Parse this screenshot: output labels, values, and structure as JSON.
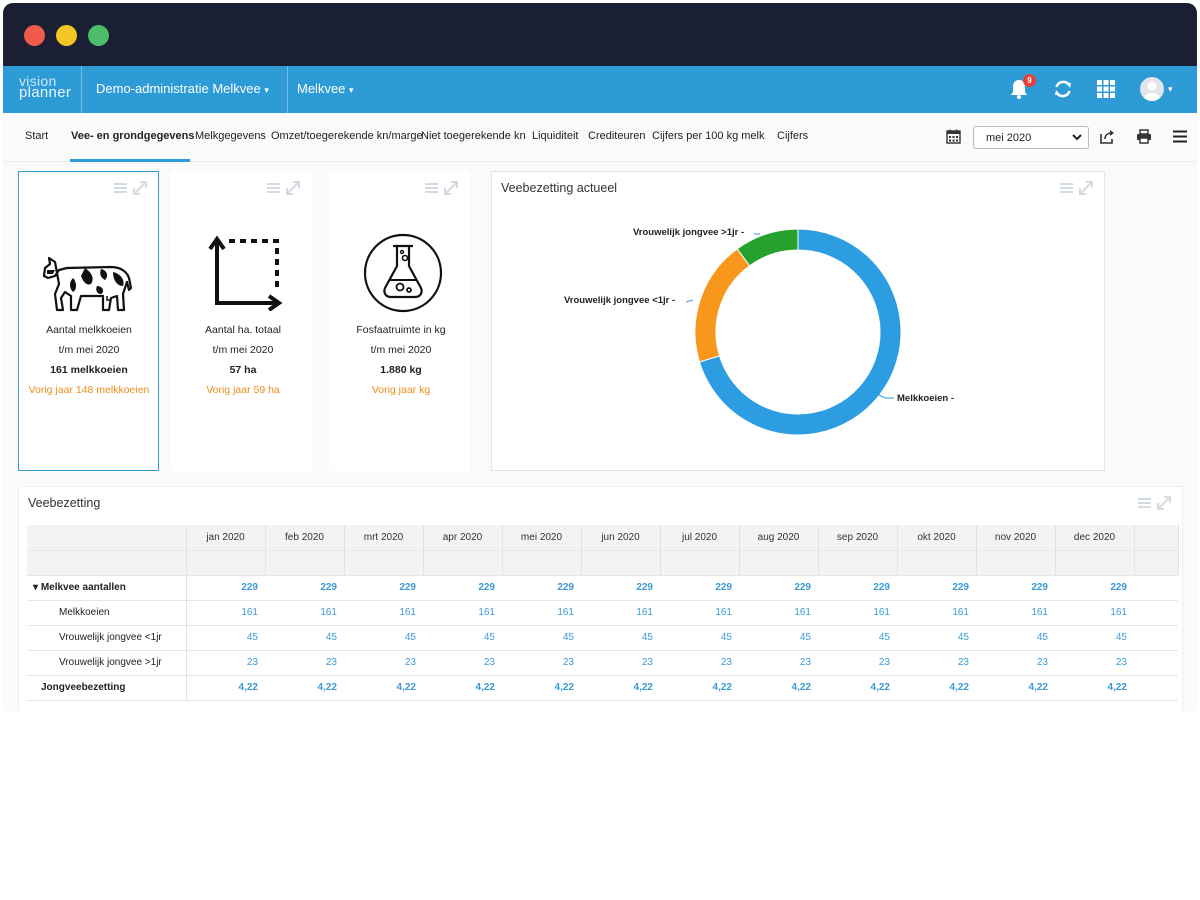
{
  "app": {
    "logo_line1": "vision",
    "logo_line2": "planner",
    "admin_menu": "Demo-administratie Melkvee",
    "branch_menu": "Melkvee",
    "notification_count": "9",
    "accent_color": "#2d9bd6"
  },
  "tabs": [
    {
      "label": "Start"
    },
    {
      "label": "Vee- en grondgegevens",
      "active": true
    },
    {
      "label": "Melkgegevens"
    },
    {
      "label": "Omzet/toegerekende kn/marge"
    },
    {
      "label": "Niet toegerekende kn"
    },
    {
      "label": "Liquiditeit"
    },
    {
      "label": "Crediteuren"
    },
    {
      "label": "Cijfers per 100 kg melk"
    },
    {
      "label": "Cijfers"
    }
  ],
  "period": {
    "selected": "mei 2020"
  },
  "stats": [
    {
      "icon": "cow-icon",
      "title": "Aantal melkkoeien",
      "period": "t/m mei 2020",
      "value": "161 melkkoeien",
      "previous": "Vorig jaar  148 melkkoeien"
    },
    {
      "icon": "area-icon",
      "title": "Aantal ha. totaal",
      "period": "t/m mei 2020",
      "value": "57 ha",
      "previous": "Vorig jaar  59 ha"
    },
    {
      "icon": "flask-icon",
      "title": "Fosfaatruimte in kg",
      "period": "t/m mei 2020",
      "value": "1.880 kg",
      "previous": "Vorig jaar kg"
    }
  ],
  "donut": {
    "title": "Veebezetting actueel",
    "chart_data": {
      "type": "pie",
      "categories": [
        "Melkkoeien",
        "Vrouwelijk jongvee <1jr",
        "Vrouwelijk jongvee >1jr"
      ],
      "values": [
        161,
        45,
        23
      ],
      "colors": [
        "#2b9de0",
        "#f7981d",
        "#27a12e"
      ],
      "labels": [
        "Melkkoeien -",
        "Vrouwelijk jongvee <1jr -",
        "Vrouwelijk jongvee >1jr -"
      ]
    }
  },
  "table": {
    "title": "Veebezetting",
    "months": [
      "jan 2020",
      "feb 2020",
      "mrt 2020",
      "apr 2020",
      "mei 2020",
      "jun 2020",
      "jul 2020",
      "aug 2020",
      "sep 2020",
      "okt 2020",
      "nov 2020",
      "dec 2020"
    ],
    "rows": [
      {
        "label": "Melkvee aantallen",
        "bold": true,
        "expander": true,
        "values": [
          "229",
          "229",
          "229",
          "229",
          "229",
          "229",
          "229",
          "229",
          "229",
          "229",
          "229",
          "229"
        ]
      },
      {
        "label": "Melkkoeien",
        "indent": true,
        "values": [
          "161",
          "161",
          "161",
          "161",
          "161",
          "161",
          "161",
          "161",
          "161",
          "161",
          "161",
          "161"
        ]
      },
      {
        "label": "Vrouwelijk jongvee <1jr",
        "indent": true,
        "values": [
          "45",
          "45",
          "45",
          "45",
          "45",
          "45",
          "45",
          "45",
          "45",
          "45",
          "45",
          "45"
        ]
      },
      {
        "label": "Vrouwelijk jongvee >1jr",
        "indent": true,
        "values": [
          "23",
          "23",
          "23",
          "23",
          "23",
          "23",
          "23",
          "23",
          "23",
          "23",
          "23",
          "23"
        ]
      },
      {
        "label": "Jongveebezetting",
        "bold": true,
        "values": [
          "4,22",
          "4,22",
          "4,22",
          "4,22",
          "4,22",
          "4,22",
          "4,22",
          "4,22",
          "4,22",
          "4,22",
          "4,22",
          "4,22"
        ]
      }
    ]
  }
}
